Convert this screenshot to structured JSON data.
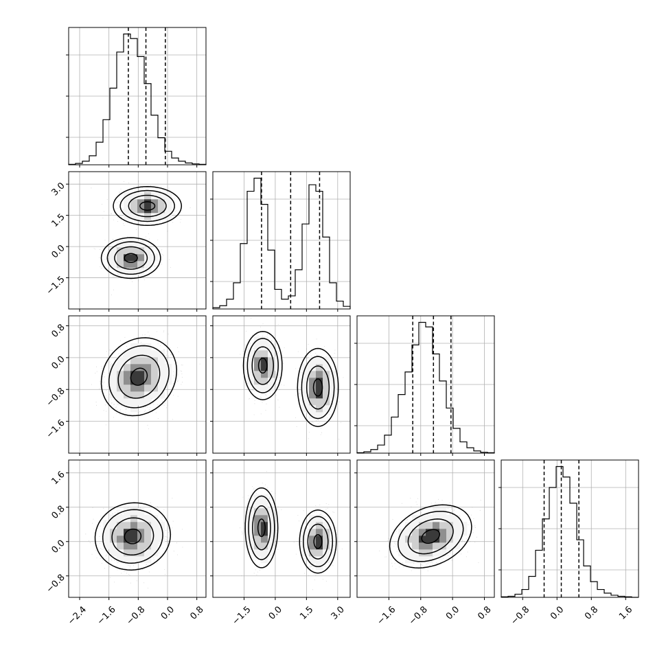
{
  "chart_data": {
    "type": "corner",
    "n_params": 4,
    "grid": true,
    "colors": {
      "line": "#000000",
      "points": "#666666",
      "grid": "#b0b0b0"
    },
    "params": [
      {
        "range": [
          -2.7,
          1.05
        ],
        "ticks": [
          -2.4,
          -1.6,
          -0.8,
          0.0,
          0.8
        ],
        "tick_labels": [
          "−2.4",
          "−1.6",
          "−0.8",
          "0.0",
          "0.8"
        ],
        "quantiles": [
          -1.07,
          -0.59,
          -0.06
        ]
      },
      {
        "range": [
          -3.0,
          3.6
        ],
        "ticks": [
          -1.5,
          0.0,
          1.5,
          3.0
        ],
        "tick_labels": [
          "−1.5",
          "0.0",
          "1.5",
          "3.0"
        ],
        "quantiles": [
          -0.66,
          0.74,
          2.13
        ]
      },
      {
        "range": [
          -2.4,
          1.05
        ],
        "ticks": [
          -1.6,
          -0.8,
          0.0,
          0.8
        ],
        "tick_labels": [
          "−1.6",
          "−0.8",
          "0.0",
          "0.8"
        ],
        "quantiles": [
          -1.0,
          -0.48,
          -0.04
        ]
      },
      {
        "range": [
          -1.3,
          1.9
        ],
        "ticks": [
          -0.8,
          0.0,
          0.8,
          1.6
        ],
        "tick_labels": [
          "−0.8",
          "0.0",
          "0.8",
          "1.6"
        ],
        "quantiles": [
          -0.3,
          0.1,
          0.51
        ]
      }
    ],
    "histograms": [
      {
        "values": [
          1,
          3,
          8,
          20,
          50,
          100,
          170,
          250,
          290,
          280,
          240,
          180,
          110,
          60,
          30,
          15,
          8,
          4,
          2,
          1
        ]
      },
      {
        "values": [
          2,
          5,
          15,
          40,
          100,
          180,
          200,
          160,
          90,
          30,
          15,
          20,
          60,
          130,
          190,
          180,
          110,
          40,
          12,
          4
        ]
      },
      {
        "values": [
          1,
          3,
          8,
          18,
          40,
          80,
          130,
          180,
          240,
          290,
          280,
          220,
          160,
          100,
          55,
          25,
          12,
          5,
          2,
          1
        ]
      },
      {
        "values": [
          1,
          2,
          6,
          15,
          40,
          90,
          150,
          210,
          250,
          230,
          180,
          110,
          60,
          30,
          15,
          8,
          4,
          2,
          1,
          0
        ]
      }
    ],
    "pairs": [
      {
        "xi": 0,
        "yi": 1,
        "modes": [
          {
            "mx": -0.55,
            "my": 1.95,
            "sx": 0.38,
            "sy": 0.38,
            "rho": 0.0,
            "w": 0.5
          },
          {
            "mx": -1.0,
            "my": -0.55,
            "sx": 0.33,
            "sy": 0.4,
            "rho": 0.0,
            "w": 0.5
          }
        ]
      },
      {
        "xi": 0,
        "yi": 2,
        "modes": [
          {
            "mx": -0.78,
            "my": -0.48,
            "sx": 0.42,
            "sy": 0.4,
            "rho": 0.15,
            "w": 1.0
          }
        ]
      },
      {
        "xi": 1,
        "yi": 2,
        "modes": [
          {
            "mx": -0.6,
            "my": -0.2,
            "sx": 0.38,
            "sy": 0.35,
            "rho": 0.0,
            "w": 0.5
          },
          {
            "mx": 2.05,
            "my": -0.75,
            "sx": 0.4,
            "sy": 0.4,
            "rho": 0.0,
            "w": 0.5
          }
        ]
      },
      {
        "xi": 0,
        "yi": 3,
        "modes": [
          {
            "mx": -0.95,
            "my": 0.12,
            "sx": 0.42,
            "sy": 0.32,
            "rho": 0.05,
            "w": 1.0
          }
        ]
      },
      {
        "xi": 1,
        "yi": 3,
        "modes": [
          {
            "mx": -0.66,
            "my": 0.32,
            "sx": 0.32,
            "sy": 0.38,
            "rho": 0.0,
            "w": 0.5
          },
          {
            "mx": 2.05,
            "my": 0.0,
            "sx": 0.36,
            "sy": 0.3,
            "rho": 0.0,
            "w": 0.5
          }
        ]
      },
      {
        "xi": 2,
        "yi": 3,
        "modes": [
          {
            "mx": -0.55,
            "my": 0.12,
            "sx": 0.42,
            "sy": 0.3,
            "rho": 0.3,
            "w": 1.0
          }
        ]
      }
    ]
  }
}
